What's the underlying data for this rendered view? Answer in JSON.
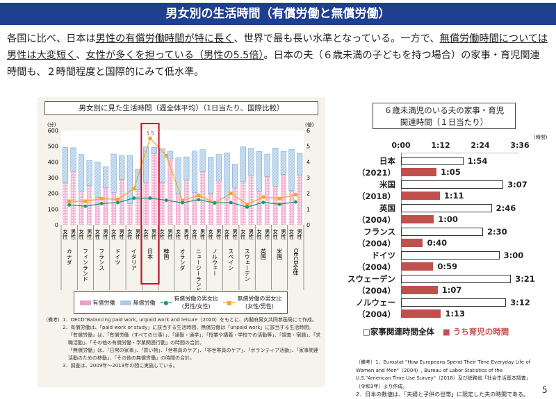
{
  "header": {
    "title": "男女別の生活時間（有償労働と無償労働）"
  },
  "lead": {
    "p1": "各国に比べ、日本は",
    "p2": "男性の有償労働時間が特に長く",
    "p3": "、世界で最も長い水準となっている。一方で、",
    "p4": "無償労働時間については男性は大変短く",
    "p5": "、",
    "p6": "女性が多くを担っている（男性の5.5倍）",
    "p7": "。日本の夫（６歳未満の子どもを持つ場合）の家事・育児関連時間も、２時間程度と国際的にみて低水準。"
  },
  "left_chart": {
    "title": "男女別に見た生活時間（週全体平均）（1日当たり、国際比較）",
    "legend": {
      "paid": "有償労働",
      "unpaid": "無償労働",
      "paid_ratio": "有償労働の男女比\n(男性/女性)",
      "unpaid_ratio": "無償労働の男女比\n(女性/男性)"
    },
    "notes": [
      "（備考）1．OECD\"Balancing paid work, unpaid work and leisure（2020）をもとに、内閣府男女共同参画局にて作成。",
      "2．有償労働は、「paid work or study」に該当する生活時間、無償労働は「unpaid work」に該当する生活時間。",
      "「有償労働」は、「有償労働（すべての仕事）」、「通勤・通学」、「授業や講義・学校での活動等」、「調査・宿題」、「求職活動」、「その他の有償労働・学業関連行動」の時間の合計。",
      "「無償労働」は、「日常の家事」、「買い物」、「世帯員のケア」、「非世帯員のケア」、「ボランティア活動」、「家事関連活動のための移動」、「その他の無償労働」の時間の合計。",
      "3．調査は、2009年～2018年の間に実施している。"
    ]
  },
  "right_chart": {
    "title1": "６歳未満児のいる夫の家事・育児",
    "title2": "関連時間（１日当たり）",
    "unit": "(時間)",
    "legend_total": "□家事関連時間全体",
    "legend_child": "■ うち育児の時間",
    "notes": [
      "（備考）1．Eurostat \"How Europeans Spend Their Time Everyday Life of Women and Men\"（2004）, Bureau of Labor Statistics of the U.S.\"American Time Use Survey\"（2018）及び総務省「社会生活基本調査」（令和3年）より作成。",
      "2．日本の数値は、「夫婦と子供の世帯」に限定した夫の時間である。"
    ]
  },
  "page_number": "5",
  "chart_data": [
    {
      "type": "bar",
      "stacked": true,
      "title": "男女別に見た生活時間（週全体平均）（1日当たり、国際比較）",
      "ylabel": "(分)",
      "y2label": "(倍)",
      "ylim": [
        0,
        600
      ],
      "y2lim": [
        0,
        6
      ],
      "yticks": [
        0,
        100,
        200,
        300,
        400,
        500,
        600
      ],
      "y2ticks": [
        0,
        1,
        2,
        3,
        4,
        5,
        6
      ],
      "sex_labels": [
        "女性",
        "男性"
      ],
      "categories": [
        "カナダ",
        "フィンランド",
        "フランス",
        "ドイツ",
        "イタリア",
        "日本",
        "韓国",
        "オランダ",
        "ニュージーランド",
        "ノルウェー",
        "スペイン",
        "スウェーデン",
        "英国",
        "米国",
        "OECD全体"
      ],
      "highlight": "日本",
      "series": [
        {
          "name": "有償労働",
          "female": [
            268,
            210,
            175,
            205,
            134,
            272,
            268,
            200,
            205,
            200,
            169,
            276,
            215,
            245,
            218
          ],
          "male": [
            341,
            248,
            236,
            290,
            222,
            452,
            419,
            285,
            338,
            278,
            238,
            312,
            307,
            320,
            317
          ]
        },
        {
          "name": "無償労働",
          "female": [
            224,
            237,
            225,
            245,
            306,
            224,
            217,
            227,
            264,
            230,
            289,
            220,
            251,
            243,
            262
          ],
          "male": [
            149,
            160,
            134,
            150,
            131,
            41,
            49,
            147,
            140,
            169,
            147,
            174,
            143,
            146,
            136
          ]
        },
        {
          "name": "有償労働の男女比(男性/女性)",
          "values": [
            1.27,
            1.18,
            1.35,
            1.41,
            1.7,
            1.7,
            1.56,
            1.4,
            1.6,
            1.39,
            1.41,
            1.13,
            1.43,
            1.31,
            1.45
          ]
        },
        {
          "name": "無償労働の男女比(女性/男性)",
          "values": [
            1.5,
            1.5,
            1.66,
            1.62,
            2.3,
            5.5,
            4.4,
            1.55,
            1.87,
            1.4,
            2.0,
            1.3,
            1.77,
            1.67,
            1.92
          ]
        }
      ],
      "data_labels": [
        "341",
        "306",
        "2.3",
        "1.7",
        "224",
        "272",
        "5.5",
        "1.7",
        "452",
        "41",
        "4.4",
        "49",
        "419",
        "264",
        "1.6",
        "289",
        "262",
        "218",
        "136",
        "317"
      ],
      "colors": {
        "paid": "#e8a0c8",
        "unpaid": "#a9cbe8",
        "green": "#1e9a6a",
        "orange": "#f5a623",
        "highlight": "#c8102e"
      }
    },
    {
      "type": "bar",
      "orientation": "horizontal",
      "title": "６歳未満児のいる夫の家事・育児関連時間（１日当たり）",
      "xticks": [
        "0:00",
        "1:12",
        "2:24",
        "3:36"
      ],
      "xlim_minutes": [
        0,
        216
      ],
      "categories": [
        {
          "name": "日本",
          "year": "（2021）"
        },
        {
          "name": "米国",
          "year": "（2018）"
        },
        {
          "name": "英国",
          "year": "（2004）"
        },
        {
          "name": "フランス",
          "year": "（2004）"
        },
        {
          "name": "ドイツ",
          "year": "（2004）"
        },
        {
          "name": "スウェーデン",
          "year": "（2004）"
        },
        {
          "name": "ノルウェー",
          "year": "（2004）"
        }
      ],
      "series": [
        {
          "name": "家事関連時間全体",
          "labels": [
            "1:54",
            "3:07",
            "2:46",
            "2:30",
            "3:00",
            "3:21",
            "3:12"
          ],
          "minutes": [
            114,
            187,
            166,
            150,
            180,
            201,
            192
          ]
        },
        {
          "name": "うち育児の時間",
          "labels": [
            "1:05",
            "1:11",
            "1:00",
            "0:40",
            "0:59",
            "1:07",
            "1:13"
          ],
          "minutes": [
            65,
            71,
            60,
            40,
            59,
            67,
            73
          ]
        }
      ],
      "colors": {
        "child": "#c0504d"
      }
    }
  ]
}
